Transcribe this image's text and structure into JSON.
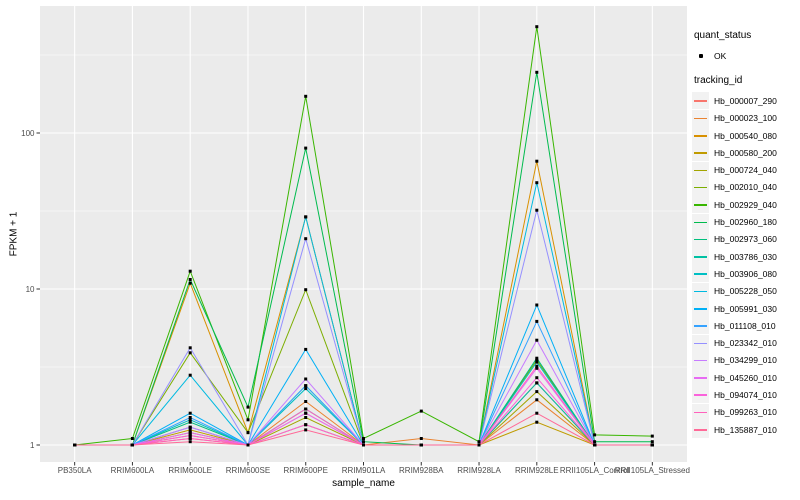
{
  "chart": {
    "xlabel": "sample_name",
    "ylabel": "FPKM + 1"
  },
  "legend": {
    "quant_status_title": "quant_status",
    "quant_status_items": [
      {
        "label": "OK",
        "marker": "black-point"
      }
    ],
    "tracking_id_title": "tracking_id"
  },
  "chart_data": {
    "type": "line",
    "title": "",
    "xlabel": "sample_name",
    "ylabel": "FPKM + 1",
    "yscale": "log10",
    "yticks": [
      1,
      10,
      100
    ],
    "ytick_labels": [
      "1",
      "10",
      "100"
    ],
    "ylim": [
      0.78,
      640
    ],
    "grid": true,
    "legend_position": "right",
    "point_marker_color": "#000000",
    "panel_background": "#EBEBEB",
    "gridline_color": "#FFFFFF",
    "axis_text_color": "#4D4D4D",
    "categories": [
      "PB350LA",
      "RRIM600LA",
      "RRIM600LE",
      "RRIM600SE",
      "RRIM600PE",
      "RRIM901LA",
      "RRIM928BA",
      "RRIM928LA",
      "RRIM928LE",
      "RRII105LA_Control",
      "RRII105LA_Stressed"
    ],
    "series": [
      {
        "name": "Hb_000007_290",
        "color": "#F8766D",
        "values": [
          1,
          1,
          1.1,
          1,
          1.6,
          1,
          1,
          1,
          2.5,
          1,
          1
        ]
      },
      {
        "name": "Hb_000023_100",
        "color": "#EA8331",
        "values": [
          1,
          1,
          1.15,
          1,
          1.9,
          1,
          1.1,
          1,
          1.95,
          1,
          1
        ]
      },
      {
        "name": "Hb_000540_080",
        "color": "#D89000",
        "values": [
          1,
          1,
          10.9,
          1.2,
          29,
          1,
          1,
          1,
          66,
          1,
          1
        ]
      },
      {
        "name": "Hb_000580_200",
        "color": "#C09B00",
        "values": [
          1,
          1,
          1.25,
          1,
          1.35,
          1,
          1,
          1,
          1.4,
          1,
          1
        ]
      },
      {
        "name": "Hb_000724_040",
        "color": "#A3A500",
        "values": [
          1,
          1,
          1.2,
          1,
          1.5,
          1,
          1,
          1,
          2.2,
          1,
          1
        ]
      },
      {
        "name": "Hb_002010_040",
        "color": "#7CAE00",
        "values": [
          1,
          1,
          3.9,
          1.2,
          9.9,
          1,
          1,
          1,
          3.5,
          1,
          1
        ]
      },
      {
        "name": "Hb_002929_040",
        "color": "#39B600",
        "values": [
          1,
          1.1,
          13,
          1.45,
          172,
          1.1,
          1.65,
          1.05,
          480,
          1.16,
          1.14
        ]
      },
      {
        "name": "Hb_002960_180",
        "color": "#00BB4E",
        "values": [
          1,
          1,
          11.5,
          1.75,
          80,
          1.05,
          1,
          1,
          245,
          1.05,
          1.05
        ]
      },
      {
        "name": "Hb_002973_060",
        "color": "#00BF7D",
        "values": [
          1,
          1,
          1.4,
          1,
          2.4,
          1,
          1,
          1,
          3.6,
          1,
          1
        ]
      },
      {
        "name": "Hb_003786_030",
        "color": "#00C1A3",
        "values": [
          1,
          1,
          1.3,
          1,
          1.7,
          1,
          1,
          1,
          2.5,
          1,
          1
        ]
      },
      {
        "name": "Hb_003906_080",
        "color": "#00BFC4",
        "values": [
          1,
          1,
          1.45,
          1,
          2.3,
          1,
          1,
          1,
          3.4,
          1,
          1
        ]
      },
      {
        "name": "Hb_005228_050",
        "color": "#00BAE0",
        "values": [
          1,
          1,
          2.8,
          1,
          29,
          1,
          1,
          1,
          48,
          1,
          1
        ]
      },
      {
        "name": "Hb_005991_030",
        "color": "#00B0F6",
        "values": [
          1,
          1,
          1.6,
          1,
          4.1,
          1,
          1,
          1,
          7.9,
          1,
          1
        ]
      },
      {
        "name": "Hb_011108_010",
        "color": "#35A2FF",
        "values": [
          1,
          1,
          1.5,
          1,
          2.4,
          1,
          1,
          1,
          6.2,
          1,
          1
        ]
      },
      {
        "name": "Hb_023342_010",
        "color": "#9590FF",
        "values": [
          1,
          1,
          4.2,
          1,
          21,
          1,
          1,
          1,
          32,
          1,
          1
        ]
      },
      {
        "name": "Hb_034299_010",
        "color": "#C77CFF",
        "values": [
          1,
          1,
          1.3,
          1,
          2.65,
          1,
          1,
          1,
          4.7,
          1,
          1
        ]
      },
      {
        "name": "Hb_045260_010",
        "color": "#E76BF3",
        "values": [
          1,
          1,
          1.2,
          1,
          1.6,
          1,
          1,
          1,
          3.1,
          1,
          1
        ]
      },
      {
        "name": "Hb_094074_010",
        "color": "#FA62DB",
        "values": [
          1,
          1,
          1.15,
          1,
          1.35,
          1,
          1,
          1,
          2.7,
          1,
          1
        ]
      },
      {
        "name": "Hb_099263_010",
        "color": "#FF62BC",
        "values": [
          1,
          1,
          1.1,
          1,
          1.7,
          1,
          1,
          1,
          3.2,
          1,
          1
        ]
      },
      {
        "name": "Hb_135887_010",
        "color": "#FF6A98",
        "values": [
          1,
          1,
          1.05,
          1,
          1.25,
          1,
          1,
          1,
          1.6,
          1,
          1
        ]
      }
    ]
  }
}
